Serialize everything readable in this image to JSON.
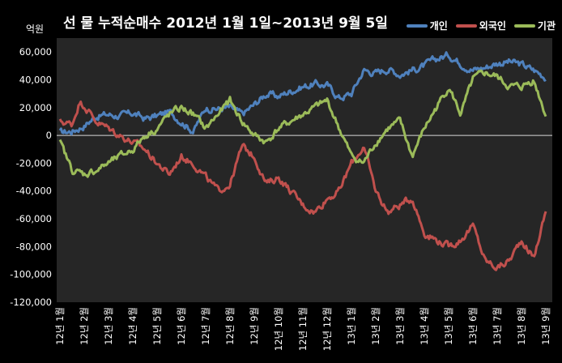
{
  "chart_data": {
    "type": "line",
    "title": "선 물 누적순매수 2012년 1월 1일~2013년 9월 5일",
    "ylabel": "억원",
    "ylim": [
      -120000,
      70000
    ],
    "yticks": [
      60000,
      40000,
      20000,
      0,
      -20000,
      -40000,
      -60000,
      -80000,
      -100000,
      -120000
    ],
    "ytick_labels": [
      "60,000",
      "40,000",
      "20,000",
      "0",
      "-20,000",
      "-40,000",
      "-60,000",
      "-80,000",
      "-100,000",
      "-120,000"
    ],
    "grid": false,
    "legend_position": "top-right",
    "categories": [
      "12년 1월",
      "12년 2월",
      "12년 3월",
      "12년 4월",
      "12년 5월",
      "12년 6월",
      "12년 7월",
      "12년 8월",
      "12년 9월",
      "12년 10월",
      "12년 11월",
      "12년 12월",
      "13년 1월",
      "13년 2월",
      "13년 3월",
      "13년 4월",
      "13년 5월",
      "13년 6월",
      "13년 7월",
      "13년 8월",
      "13년 9월"
    ],
    "series": [
      {
        "name": "개인",
        "color": "#4f81bd",
        "keyframes": [
          [
            0,
            2000
          ],
          [
            0.5,
            3000
          ],
          [
            1,
            7000
          ],
          [
            1.5,
            14000
          ],
          [
            2,
            15000
          ],
          [
            2.5,
            14000
          ],
          [
            3,
            16000
          ],
          [
            3.5,
            12000
          ],
          [
            4,
            14000
          ],
          [
            4.5,
            17000
          ],
          [
            5,
            10000
          ],
          [
            5.5,
            3000
          ],
          [
            6,
            20000
          ],
          [
            6.5,
            19000
          ],
          [
            7,
            20000
          ],
          [
            7.5,
            15000
          ],
          [
            8,
            22000
          ],
          [
            8.5,
            30000
          ],
          [
            9,
            28000
          ],
          [
            9.5,
            32000
          ],
          [
            10,
            35000
          ],
          [
            10.5,
            37000
          ],
          [
            11,
            36000
          ],
          [
            11.5,
            27000
          ],
          [
            12,
            30000
          ],
          [
            12.5,
            47000
          ],
          [
            13,
            45000
          ],
          [
            13.5,
            48000
          ],
          [
            14,
            44000
          ],
          [
            14.5,
            47000
          ],
          [
            15,
            50000
          ],
          [
            15.5,
            55000
          ],
          [
            16,
            58000
          ],
          [
            16.5,
            52000
          ],
          [
            17,
            47000
          ],
          [
            17.5,
            49000
          ],
          [
            18,
            52000
          ],
          [
            18.5,
            53000
          ],
          [
            19,
            51000
          ],
          [
            19.5,
            47000
          ],
          [
            20,
            42000
          ]
        ]
      },
      {
        "name": "외국인",
        "color": "#c0504d",
        "keyframes": [
          [
            0,
            10000
          ],
          [
            0.5,
            8000
          ],
          [
            0.8,
            24000
          ],
          [
            1,
            22000
          ],
          [
            1.5,
            10000
          ],
          [
            2,
            5000
          ],
          [
            2.5,
            0
          ],
          [
            3,
            -5000
          ],
          [
            3.5,
            -10000
          ],
          [
            4,
            -20000
          ],
          [
            4.5,
            -28000
          ],
          [
            5,
            -15000
          ],
          [
            5.5,
            -20000
          ],
          [
            6,
            -30000
          ],
          [
            6.5,
            -40000
          ],
          [
            7,
            -35000
          ],
          [
            7.5,
            -8000
          ],
          [
            8,
            -15000
          ],
          [
            8.5,
            -35000
          ],
          [
            9,
            -30000
          ],
          [
            9.5,
            -40000
          ],
          [
            10,
            -50000
          ],
          [
            10.5,
            -55000
          ],
          [
            11,
            -45000
          ],
          [
            11.5,
            -40000
          ],
          [
            12,
            -20000
          ],
          [
            12.5,
            -8000
          ],
          [
            13,
            -40000
          ],
          [
            13.5,
            -55000
          ],
          [
            14,
            -50000
          ],
          [
            14.5,
            -45000
          ],
          [
            15,
            -70000
          ],
          [
            15.5,
            -75000
          ],
          [
            16,
            -80000
          ],
          [
            16.5,
            -75000
          ],
          [
            17,
            -65000
          ],
          [
            17.5,
            -90000
          ],
          [
            18,
            -95000
          ],
          [
            18.5,
            -90000
          ],
          [
            19,
            -75000
          ],
          [
            19.5,
            -88000
          ],
          [
            20,
            -55000
          ]
        ]
      },
      {
        "name": "기관",
        "color": "#9bbb59",
        "keyframes": [
          [
            0,
            -5000
          ],
          [
            0.5,
            -25000
          ],
          [
            1,
            -28000
          ],
          [
            1.5,
            -25000
          ],
          [
            2,
            -20000
          ],
          [
            2.5,
            -15000
          ],
          [
            3,
            -10000
          ],
          [
            3.5,
            0
          ],
          [
            4,
            5000
          ],
          [
            4.5,
            15000
          ],
          [
            5,
            20000
          ],
          [
            5.5,
            15000
          ],
          [
            6,
            5000
          ],
          [
            6.5,
            15000
          ],
          [
            7,
            25000
          ],
          [
            7.5,
            10000
          ],
          [
            8,
            0
          ],
          [
            8.5,
            -5000
          ],
          [
            9,
            5000
          ],
          [
            9.5,
            10000
          ],
          [
            10,
            15000
          ],
          [
            10.5,
            20000
          ],
          [
            11,
            25000
          ],
          [
            11.5,
            5000
          ],
          [
            12,
            -15000
          ],
          [
            12.5,
            -20000
          ],
          [
            13,
            -5000
          ],
          [
            13.5,
            5000
          ],
          [
            14,
            10000
          ],
          [
            14.5,
            -15000
          ],
          [
            15,
            5000
          ],
          [
            15.5,
            20000
          ],
          [
            16,
            35000
          ],
          [
            16.5,
            15000
          ],
          [
            17,
            40000
          ],
          [
            17.5,
            45000
          ],
          [
            18,
            42000
          ],
          [
            18.5,
            35000
          ],
          [
            19,
            35000
          ],
          [
            19.5,
            40000
          ],
          [
            20,
            15000
          ]
        ]
      }
    ]
  }
}
